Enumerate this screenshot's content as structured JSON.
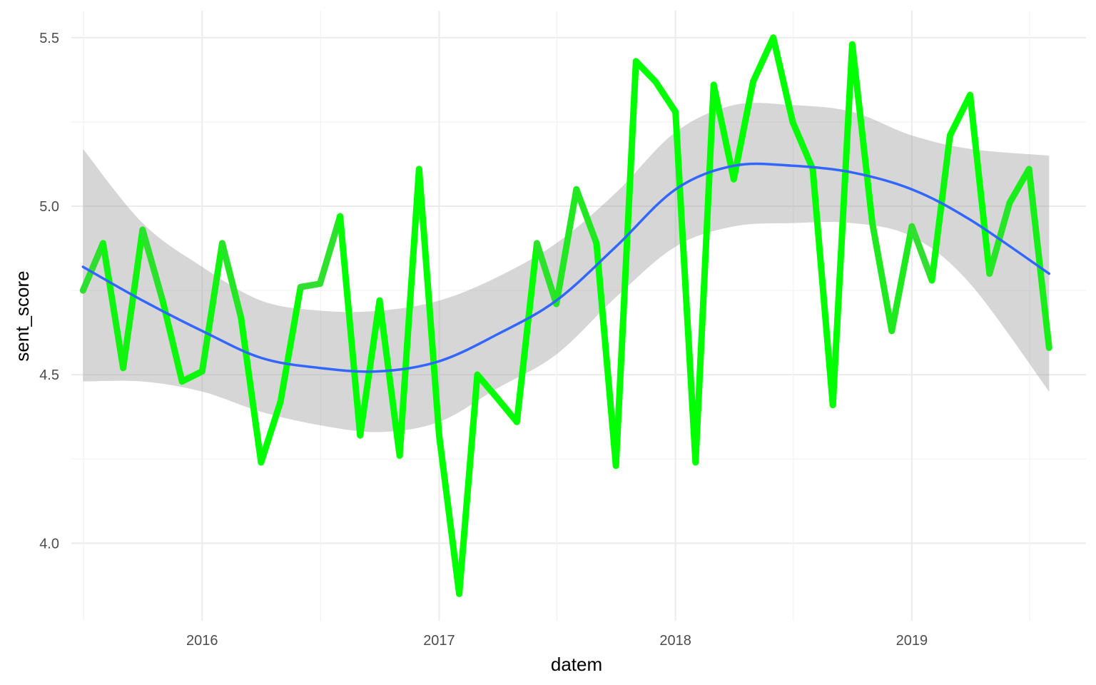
{
  "chart_data": {
    "type": "line",
    "title": "",
    "xlabel": "datem",
    "ylabel": "sent_score",
    "x_ticks": [
      "2016",
      "2017",
      "2018",
      "2019"
    ],
    "y_ticks": [
      "4.0",
      "4.5",
      "5.0",
      "5.5"
    ],
    "xlim": [
      "2015-06-13",
      "2019-09-27"
    ],
    "ylim": [
      3.77,
      5.58
    ],
    "grid": true,
    "legend": "none",
    "series": [
      {
        "role": "data",
        "color_scale": [
          "#3dd63d",
          "#00ff00"
        ],
        "x": [
          "2015-07-01",
          "2015-08-01",
          "2015-09-01",
          "2015-10-01",
          "2015-11-01",
          "2015-12-01",
          "2016-01-01",
          "2016-02-01",
          "2016-03-01",
          "2016-04-01",
          "2016-05-01",
          "2016-06-01",
          "2016-07-01",
          "2016-08-01",
          "2016-09-01",
          "2016-10-01",
          "2016-11-01",
          "2016-12-01",
          "2017-01-01",
          "2017-02-01",
          "2017-03-01",
          "2017-04-01",
          "2017-05-01",
          "2017-06-01",
          "2017-07-01",
          "2017-08-01",
          "2017-09-01",
          "2017-10-01",
          "2017-11-01",
          "2017-12-01",
          "2018-01-01",
          "2018-02-01",
          "2018-03-01",
          "2018-04-01",
          "2018-05-01",
          "2018-06-01",
          "2018-07-01",
          "2018-08-01",
          "2018-09-01",
          "2018-10-01",
          "2018-11-01",
          "2018-12-01",
          "2019-01-01",
          "2019-02-01",
          "2019-03-01",
          "2019-04-01",
          "2019-05-01",
          "2019-06-01",
          "2019-07-01",
          "2019-08-01"
        ],
        "y": [
          4.75,
          4.89,
          4.52,
          4.93,
          4.72,
          4.48,
          4.51,
          4.89,
          4.67,
          4.24,
          4.42,
          4.76,
          4.77,
          4.97,
          4.32,
          4.72,
          4.26,
          5.11,
          4.32,
          3.85,
          4.5,
          4.43,
          4.36,
          4.89,
          4.71,
          5.05,
          4.89,
          4.23,
          5.43,
          5.37,
          5.28,
          4.24,
          5.36,
          5.08,
          5.37,
          5.5,
          5.25,
          5.11,
          4.41,
          5.48,
          4.95,
          4.63,
          4.94,
          4.78,
          5.21,
          5.33,
          4.8,
          5.01,
          5.11,
          4.58
        ]
      },
      {
        "role": "smooth",
        "color": "#3366ff",
        "band_color": "#999999",
        "x": [
          "2015-07-01",
          "2015-10-01",
          "2016-01-01",
          "2016-04-01",
          "2016-07-01",
          "2016-10-01",
          "2017-01-01",
          "2017-04-01",
          "2017-07-01",
          "2017-10-01",
          "2018-01-01",
          "2018-04-01",
          "2018-07-01",
          "2018-10-01",
          "2019-01-01",
          "2019-04-01",
          "2019-08-01"
        ],
        "y": [
          4.82,
          4.72,
          4.63,
          4.55,
          4.52,
          4.51,
          4.54,
          4.62,
          4.72,
          4.88,
          5.05,
          5.12,
          5.12,
          5.1,
          5.05,
          4.96,
          4.8
        ],
        "ymin": [
          4.48,
          4.48,
          4.45,
          4.39,
          4.35,
          4.33,
          4.36,
          4.46,
          4.56,
          4.73,
          4.88,
          4.94,
          4.95,
          4.95,
          4.91,
          4.77,
          4.45
        ],
        "ymax": [
          5.17,
          4.95,
          4.82,
          4.72,
          4.69,
          4.69,
          4.72,
          4.79,
          4.89,
          5.04,
          5.22,
          5.3,
          5.3,
          5.28,
          5.21,
          5.17,
          5.15
        ]
      }
    ]
  }
}
